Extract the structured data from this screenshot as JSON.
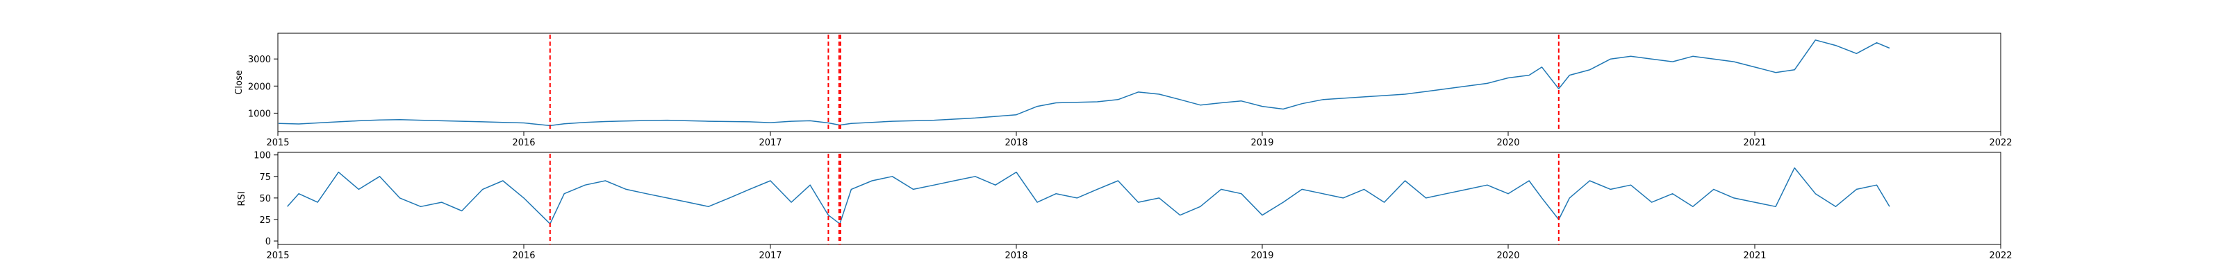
{
  "chart_data": [
    {
      "type": "line",
      "ylabel": "Close",
      "xlim": [
        "2015-01-01",
        "2022-01-01"
      ],
      "ylim": [
        320,
        3950
      ],
      "x_ticks": [
        "2015",
        "2016",
        "2017",
        "2018",
        "2019",
        "2020",
        "2021",
        "2022"
      ],
      "y_ticks": [
        1000,
        2000,
        3000
      ],
      "line_color": "#1f77b4",
      "marker_color": "#ff0000",
      "marker_dates": [
        "2016-02-09",
        "2017-03-28",
        "2017-04-13",
        "2017-04-15",
        "2020-03-16"
      ],
      "series": [
        {
          "x": [
            "2015-01-02",
            "2015-02-01",
            "2015-03-01",
            "2015-04-01",
            "2015-05-01",
            "2015-06-01",
            "2015-07-01",
            "2015-08-01",
            "2015-09-01",
            "2015-10-01",
            "2015-11-01",
            "2015-12-01",
            "2016-01-01",
            "2016-02-09",
            "2016-03-01",
            "2016-04-01",
            "2016-05-01",
            "2016-06-01",
            "2016-07-01",
            "2016-08-01",
            "2016-09-01",
            "2016-10-01",
            "2016-11-01",
            "2016-12-01",
            "2017-01-01",
            "2017-02-01",
            "2017-03-01",
            "2017-03-28",
            "2017-04-14",
            "2017-05-01",
            "2017-06-01",
            "2017-07-01",
            "2017-08-01",
            "2017-09-01",
            "2017-10-01",
            "2017-11-01",
            "2017-12-01",
            "2018-01-01",
            "2018-02-01",
            "2018-03-01",
            "2018-04-01",
            "2018-05-01",
            "2018-06-01",
            "2018-07-01",
            "2018-08-01",
            "2018-09-01",
            "2018-10-01",
            "2018-11-01",
            "2018-12-01",
            "2019-01-01",
            "2019-02-01",
            "2019-03-01",
            "2019-04-01",
            "2019-05-01",
            "2019-06-01",
            "2019-07-01",
            "2019-08-01",
            "2019-09-01",
            "2019-10-01",
            "2019-11-01",
            "2019-12-01",
            "2020-01-01",
            "2020-02-01",
            "2020-02-20",
            "2020-03-16",
            "2020-04-01",
            "2020-05-01",
            "2020-06-01",
            "2020-07-01",
            "2020-08-01",
            "2020-09-01",
            "2020-10-01",
            "2020-11-01",
            "2020-12-01",
            "2021-01-01",
            "2021-02-01",
            "2021-03-01",
            "2021-04-01",
            "2021-05-01",
            "2021-06-01",
            "2021-07-01",
            "2021-07-20"
          ],
          "values": [
            620,
            600,
            640,
            680,
            720,
            750,
            760,
            740,
            720,
            700,
            680,
            660,
            640,
            540,
            610,
            660,
            690,
            710,
            730,
            740,
            720,
            700,
            690,
            680,
            650,
            700,
            720,
            640,
            560,
            620,
            660,
            700,
            720,
            740,
            780,
            820,
            880,
            940,
            1250,
            1380,
            1400,
            1420,
            1500,
            1780,
            1700,
            1500,
            1300,
            1380,
            1450,
            1250,
            1150,
            1350,
            1500,
            1550,
            1600,
            1650,
            1700,
            1800,
            1900,
            2000,
            2100,
            2300,
            2400,
            2700,
            1900,
            2400,
            2600,
            3000,
            3100,
            3000,
            2900,
            3100,
            3000,
            2900,
            2700,
            2500,
            2600,
            3700,
            3500,
            3200,
            3600,
            3400
          ]
        }
      ]
    },
    {
      "type": "line",
      "ylabel": "RSI",
      "xlim": [
        "2015-01-01",
        "2022-01-01"
      ],
      "ylim": [
        -4,
        103
      ],
      "x_ticks": [
        "2015",
        "2016",
        "2017",
        "2018",
        "2019",
        "2020",
        "2021",
        "2022"
      ],
      "y_ticks": [
        0,
        25,
        50,
        75,
        100
      ],
      "line_color": "#1f77b4",
      "marker_color": "#ff0000",
      "marker_dates": [
        "2016-02-09",
        "2017-03-28",
        "2017-04-13",
        "2017-04-15",
        "2020-03-16"
      ],
      "series": [
        {
          "x": [
            "2015-01-15",
            "2015-02-01",
            "2015-03-01",
            "2015-04-01",
            "2015-05-01",
            "2015-06-01",
            "2015-07-01",
            "2015-08-01",
            "2015-09-01",
            "2015-10-01",
            "2015-11-01",
            "2015-12-01",
            "2016-01-01",
            "2016-02-09",
            "2016-03-01",
            "2016-04-01",
            "2016-05-01",
            "2016-06-01",
            "2016-07-01",
            "2016-08-01",
            "2016-09-01",
            "2016-10-01",
            "2016-11-01",
            "2016-12-01",
            "2017-01-01",
            "2017-02-01",
            "2017-03-01",
            "2017-03-28",
            "2017-04-14",
            "2017-05-01",
            "2017-06-01",
            "2017-07-01",
            "2017-08-01",
            "2017-09-01",
            "2017-10-01",
            "2017-11-01",
            "2017-12-01",
            "2018-01-01",
            "2018-02-01",
            "2018-03-01",
            "2018-04-01",
            "2018-05-01",
            "2018-06-01",
            "2018-07-01",
            "2018-08-01",
            "2018-09-01",
            "2018-10-01",
            "2018-11-01",
            "2018-12-01",
            "2019-01-01",
            "2019-02-01",
            "2019-03-01",
            "2019-04-01",
            "2019-05-01",
            "2019-06-01",
            "2019-07-01",
            "2019-08-01",
            "2019-09-01",
            "2019-10-01",
            "2019-11-01",
            "2019-12-01",
            "2020-01-01",
            "2020-02-01",
            "2020-02-20",
            "2020-03-16",
            "2020-04-01",
            "2020-05-01",
            "2020-06-01",
            "2020-07-01",
            "2020-08-01",
            "2020-09-01",
            "2020-10-01",
            "2020-11-01",
            "2020-12-01",
            "2021-01-01",
            "2021-02-01",
            "2021-03-01",
            "2021-04-01",
            "2021-05-01",
            "2021-06-01",
            "2021-07-01",
            "2021-07-20"
          ],
          "values": [
            40,
            55,
            45,
            80,
            60,
            75,
            50,
            40,
            45,
            35,
            60,
            70,
            50,
            20,
            55,
            65,
            70,
            60,
            55,
            50,
            45,
            40,
            50,
            60,
            70,
            45,
            65,
            30,
            20,
            60,
            70,
            75,
            60,
            65,
            70,
            75,
            65,
            80,
            45,
            55,
            50,
            60,
            70,
            45,
            50,
            30,
            40,
            60,
            55,
            30,
            45,
            60,
            55,
            50,
            60,
            45,
            70,
            50,
            55,
            60,
            65,
            55,
            70,
            50,
            25,
            50,
            70,
            60,
            65,
            45,
            55,
            40,
            60,
            50,
            45,
            40,
            85,
            55,
            40,
            60,
            65,
            40
          ]
        }
      ]
    }
  ]
}
